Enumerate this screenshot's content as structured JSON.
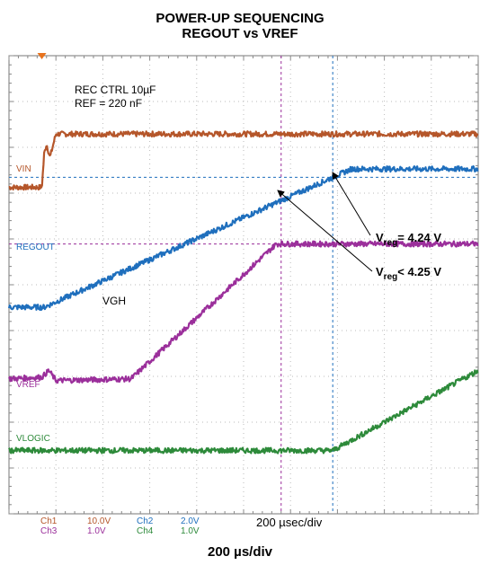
{
  "title": "POWER-UP SEQUENCING",
  "subtitle": "REGOUT vs VREF",
  "footer": "200 µs/div",
  "chart_data": {
    "type": "line",
    "grid": true,
    "x_unit": "µs",
    "x_range": [
      0,
      2000
    ],
    "annotations": {
      "cond1": "REC CTRL 10µF",
      "cond2": "REF = 220 nF",
      "vgh": "VGH",
      "vreg1": "4.24 V",
      "vreg2": "4.25 V",
      "timebase": "200 µsec/div"
    },
    "series": [
      {
        "name": "VIN",
        "color": "#b5562a",
        "x": [
          0,
          140,
          150,
          160,
          175,
          200,
          2000
        ],
        "y": [
          7.3,
          7.3,
          8.3,
          8.6,
          8.2,
          8.9,
          8.9
        ]
      },
      {
        "name": "REGOUT",
        "color": "#1f6fbd",
        "x": [
          0,
          150,
          1460,
          2000
        ],
        "y": [
          3.7,
          3.7,
          7.85,
          7.85
        ]
      },
      {
        "name": "VREF",
        "color": "#9b2f9b",
        "x": [
          0,
          140,
          170,
          200,
          520,
          1140,
          1200,
          2000
        ],
        "y": [
          1.55,
          1.6,
          1.8,
          1.5,
          1.55,
          5.6,
          5.6,
          5.6
        ]
      },
      {
        "name": "VLOGIC",
        "color": "#2d8a3a",
        "x": [
          0,
          1380,
          2000
        ],
        "y": [
          -0.6,
          -0.6,
          1.8
        ]
      }
    ],
    "channel_table": [
      {
        "ch": "Ch1",
        "volts": "10.0V",
        "ch2": "Ch2",
        "volts2": "2.0V"
      },
      {
        "ch": "Ch3",
        "volts": "1.0V",
        "ch2": "Ch4",
        "volts2": "1.0V"
      }
    ],
    "channel_colors": [
      "#b5562a",
      "#9b2f9b",
      "#1f6fbd",
      "#2d8a3a"
    ],
    "cursor_times": [
      1160,
      1380
    ],
    "ref_levels": [
      7.6,
      5.6
    ]
  }
}
